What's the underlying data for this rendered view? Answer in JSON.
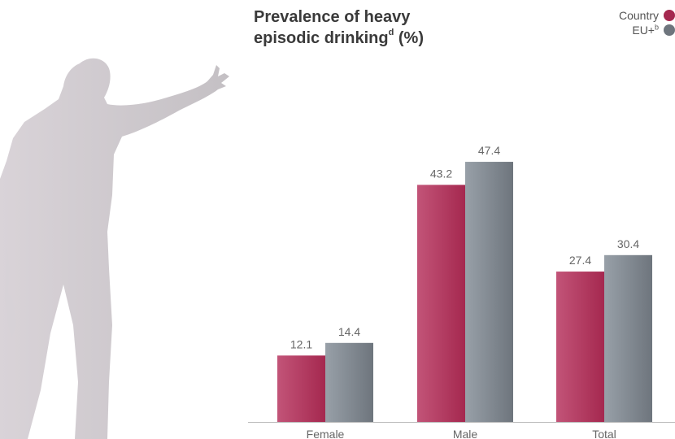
{
  "title": {
    "line1": "Prevalence of heavy",
    "line2_main": "episodic drinking",
    "line2_sup": "d",
    "line2_end": " (%)"
  },
  "legend": {
    "country_label": "Country",
    "eu_label": "EU+",
    "eu_sup": "b"
  },
  "colors": {
    "country": "#a5284f",
    "eu": "#6e757d",
    "axis": "#bbbbbb",
    "text": "#666666"
  },
  "chart_data": {
    "type": "bar",
    "categories": [
      "Female",
      "Male",
      "Total"
    ],
    "series": [
      {
        "name": "Country",
        "values": [
          12.1,
          43.2,
          27.4
        ]
      },
      {
        "name": "EU+",
        "values": [
          14.4,
          47.4,
          30.4
        ]
      }
    ],
    "title": "Prevalence of heavy episodic drinking (%)",
    "ylim": [
      0,
      50
    ],
    "legend_position": "top-right"
  }
}
